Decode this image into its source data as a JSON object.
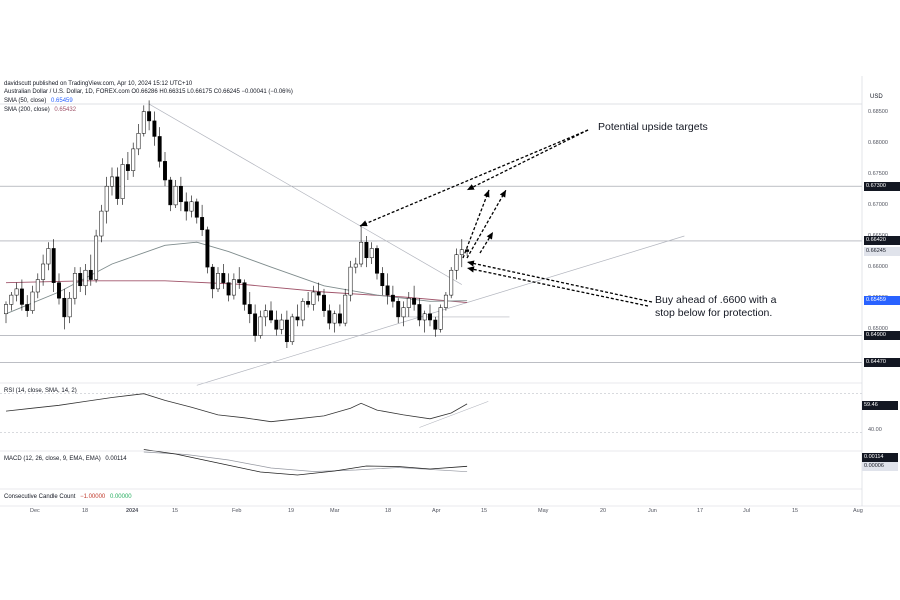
{
  "header": {
    "publisher": "davidscutt published on TradingView.com, Apr 10, 2024 15:12 UTC+10",
    "symbol_line": "Australian Dollar / U.S. Dollar, 1D, FOREX.com O0.66286 H0.66315 L0.66175 C0.66245 −0.00041 (−0.06%)",
    "sma50_label": "SMA (50, close)",
    "sma50_value": "0.65459",
    "sma200_label": "SMA (200, close)",
    "sma200_value": "0.65432",
    "currency": "USD"
  },
  "annotations": {
    "targets": "Potential upside targets",
    "buy_line1": "Buy ahead of .6600 with a",
    "buy_line2": "stop below for protection."
  },
  "price_axis": {
    "ticks": [
      "0.68500",
      "0.68000",
      "0.67500",
      "0.67000",
      "0.66500",
      "0.66000",
      "0.65500",
      "0.65000"
    ],
    "tags": [
      {
        "label": "0.67300",
        "style": "dark"
      },
      {
        "label": "0.66420",
        "style": "dark"
      },
      {
        "label": "0.66245",
        "style": "light"
      },
      {
        "label": "0.65459",
        "style": "blue"
      },
      {
        "label": "0.64900",
        "style": "dark"
      },
      {
        "label": "0.64470",
        "style": "dark"
      }
    ]
  },
  "rsi": {
    "label": "RSI (14, close, SMA, 14, 2)",
    "value": "59.46",
    "tick": "40.00"
  },
  "macd": {
    "label": "MACD (12, 26, close, 9, EMA, EMA)",
    "value": "0.00114",
    "signal_value": "0.00006"
  },
  "ccc": {
    "label": "Consecutive Candle Count",
    "v1": "−1.00000",
    "v2": "0.00000"
  },
  "time_axis": {
    "labels": [
      "Dec",
      "18",
      "2024",
      "15",
      "Feb",
      "19",
      "Mar",
      "18",
      "Apr",
      "15",
      "May",
      "20",
      "Jun",
      "17",
      "Jul",
      "15",
      "Aug"
    ]
  },
  "colors": {
    "up": "#ffffff",
    "down": "#000000",
    "sma50": "#7f8c8d",
    "sma200": "#a0546a",
    "blue_tag": "#2962ff"
  },
  "chart_data": {
    "type": "candlestick",
    "symbol": "AUD/USD",
    "interval": "1D",
    "ylim": [
      0.6425,
      0.6875
    ],
    "levels": [
      0.673,
      0.6642,
      0.649,
      0.6447
    ],
    "last_close": 0.66245,
    "ohlc": [
      [
        0.6525,
        0.6545,
        0.651,
        0.654
      ],
      [
        0.654,
        0.656,
        0.653,
        0.6555
      ],
      [
        0.6555,
        0.6575,
        0.6545,
        0.6565
      ],
      [
        0.6565,
        0.658,
        0.653,
        0.654
      ],
      [
        0.654,
        0.6555,
        0.652,
        0.653
      ],
      [
        0.653,
        0.657,
        0.6525,
        0.656
      ],
      [
        0.656,
        0.659,
        0.655,
        0.658
      ],
      [
        0.658,
        0.662,
        0.657,
        0.6605
      ],
      [
        0.6605,
        0.664,
        0.6595,
        0.663
      ],
      [
        0.663,
        0.6645,
        0.656,
        0.6575
      ],
      [
        0.6575,
        0.659,
        0.654,
        0.655
      ],
      [
        0.655,
        0.6565,
        0.65,
        0.652
      ],
      [
        0.652,
        0.656,
        0.651,
        0.655
      ],
      [
        0.655,
        0.66,
        0.654,
        0.659
      ],
      [
        0.659,
        0.66,
        0.656,
        0.657
      ],
      [
        0.657,
        0.6605,
        0.6555,
        0.6595
      ],
      [
        0.6595,
        0.662,
        0.657,
        0.658
      ],
      [
        0.658,
        0.666,
        0.6575,
        0.665
      ],
      [
        0.665,
        0.67,
        0.664,
        0.669
      ],
      [
        0.669,
        0.6745,
        0.667,
        0.673
      ],
      [
        0.673,
        0.676,
        0.6715,
        0.6745
      ],
      [
        0.6745,
        0.676,
        0.67,
        0.671
      ],
      [
        0.671,
        0.6775,
        0.67,
        0.6765
      ],
      [
        0.6765,
        0.6785,
        0.674,
        0.6755
      ],
      [
        0.6755,
        0.68,
        0.6745,
        0.679
      ],
      [
        0.679,
        0.683,
        0.678,
        0.6815
      ],
      [
        0.6815,
        0.686,
        0.681,
        0.685
      ],
      [
        0.685,
        0.6868,
        0.682,
        0.6835
      ],
      [
        0.6835,
        0.685,
        0.6795,
        0.681
      ],
      [
        0.681,
        0.6825,
        0.676,
        0.677
      ],
      [
        0.677,
        0.6785,
        0.673,
        0.674
      ],
      [
        0.674,
        0.6745,
        0.669,
        0.67
      ],
      [
        0.67,
        0.674,
        0.6695,
        0.673
      ],
      [
        0.673,
        0.6745,
        0.669,
        0.6705
      ],
      [
        0.6705,
        0.672,
        0.6675,
        0.669
      ],
      [
        0.669,
        0.6715,
        0.668,
        0.6705
      ],
      [
        0.6705,
        0.671,
        0.667,
        0.668
      ],
      [
        0.668,
        0.67,
        0.665,
        0.666
      ],
      [
        0.666,
        0.6665,
        0.659,
        0.66
      ],
      [
        0.66,
        0.6605,
        0.655,
        0.6565
      ],
      [
        0.6565,
        0.66,
        0.656,
        0.659
      ],
      [
        0.659,
        0.6605,
        0.6565,
        0.6575
      ],
      [
        0.6575,
        0.659,
        0.6545,
        0.6555
      ],
      [
        0.6555,
        0.659,
        0.6548,
        0.658
      ],
      [
        0.658,
        0.66,
        0.6565,
        0.6575
      ],
      [
        0.6575,
        0.658,
        0.653,
        0.654
      ],
      [
        0.654,
        0.656,
        0.651,
        0.6525
      ],
      [
        0.6525,
        0.654,
        0.648,
        0.649
      ],
      [
        0.649,
        0.653,
        0.6485,
        0.652
      ],
      [
        0.652,
        0.654,
        0.6505,
        0.653
      ],
      [
        0.653,
        0.6545,
        0.651,
        0.6515
      ],
      [
        0.6515,
        0.653,
        0.649,
        0.65
      ],
      [
        0.65,
        0.6525,
        0.6492,
        0.6515
      ],
      [
        0.6515,
        0.653,
        0.647,
        0.648
      ],
      [
        0.648,
        0.6525,
        0.6475,
        0.652
      ],
      [
        0.652,
        0.654,
        0.6505,
        0.6515
      ],
      [
        0.6515,
        0.655,
        0.6505,
        0.6545
      ],
      [
        0.6545,
        0.656,
        0.6535,
        0.654
      ],
      [
        0.654,
        0.657,
        0.653,
        0.656
      ],
      [
        0.656,
        0.6575,
        0.6545,
        0.6555
      ],
      [
        0.6555,
        0.6565,
        0.652,
        0.653
      ],
      [
        0.653,
        0.654,
        0.65,
        0.651
      ],
      [
        0.651,
        0.653,
        0.6495,
        0.6525
      ],
      [
        0.6525,
        0.654,
        0.6505,
        0.651
      ],
      [
        0.651,
        0.6565,
        0.6505,
        0.6555
      ],
      [
        0.6555,
        0.661,
        0.6545,
        0.66
      ],
      [
        0.66,
        0.6615,
        0.659,
        0.6605
      ],
      [
        0.6605,
        0.6668,
        0.66,
        0.664
      ],
      [
        0.664,
        0.665,
        0.66,
        0.6615
      ],
      [
        0.6615,
        0.664,
        0.6605,
        0.663
      ],
      [
        0.663,
        0.6635,
        0.658,
        0.659
      ],
      [
        0.659,
        0.66,
        0.6555,
        0.657
      ],
      [
        0.657,
        0.659,
        0.654,
        0.6555
      ],
      [
        0.6555,
        0.657,
        0.6535,
        0.6545
      ],
      [
        0.6545,
        0.655,
        0.651,
        0.652
      ],
      [
        0.652,
        0.6545,
        0.6505,
        0.6535
      ],
      [
        0.6535,
        0.656,
        0.652,
        0.655
      ],
      [
        0.655,
        0.657,
        0.653,
        0.654
      ],
      [
        0.654,
        0.655,
        0.6505,
        0.6515
      ],
      [
        0.6515,
        0.653,
        0.6495,
        0.6525
      ],
      [
        0.6525,
        0.654,
        0.6505,
        0.6515
      ],
      [
        0.6515,
        0.652,
        0.6488,
        0.65
      ],
      [
        0.65,
        0.654,
        0.6495,
        0.6535
      ],
      [
        0.6535,
        0.656,
        0.653,
        0.6555
      ],
      [
        0.6555,
        0.66,
        0.655,
        0.6595
      ],
      [
        0.6595,
        0.663,
        0.658,
        0.662
      ],
      [
        0.662,
        0.6645,
        0.66,
        0.6628
      ],
      [
        0.6628,
        0.6632,
        0.6618,
        0.6625
      ]
    ],
    "sma50": [
      [
        0,
        0.6525
      ],
      [
        10,
        0.656
      ],
      [
        20,
        0.6605
      ],
      [
        30,
        0.6635
      ],
      [
        36,
        0.664
      ],
      [
        42,
        0.6625
      ],
      [
        50,
        0.66
      ],
      [
        60,
        0.657
      ],
      [
        70,
        0.6555
      ],
      [
        80,
        0.6545
      ],
      [
        87,
        0.6546
      ]
    ],
    "sma200": [
      [
        0,
        0.6575
      ],
      [
        15,
        0.6578
      ],
      [
        30,
        0.6578
      ],
      [
        45,
        0.6572
      ],
      [
        60,
        0.656
      ],
      [
        75,
        0.6552
      ],
      [
        87,
        0.6543
      ]
    ],
    "rsi_series": [
      [
        0,
        52
      ],
      [
        5,
        55
      ],
      [
        10,
        58
      ],
      [
        15,
        62
      ],
      [
        20,
        66
      ],
      [
        26,
        70
      ],
      [
        30,
        63
      ],
      [
        35,
        56
      ],
      [
        40,
        48
      ],
      [
        45,
        45
      ],
      [
        50,
        41
      ],
      [
        55,
        44
      ],
      [
        60,
        47
      ],
      [
        65,
        55
      ],
      [
        67,
        60
      ],
      [
        70,
        53
      ],
      [
        75,
        48
      ],
      [
        80,
        44
      ],
      [
        84,
        50
      ],
      [
        87,
        59.46
      ]
    ],
    "macd_series": [
      [
        26,
        0.0045
      ],
      [
        32,
        0.0036
      ],
      [
        40,
        0.0018
      ],
      [
        48,
        0.0
      ],
      [
        55,
        -0.0006
      ],
      [
        62,
        0.0002
      ],
      [
        68,
        0.0012
      ],
      [
        74,
        0.0011
      ],
      [
        80,
        0.0006
      ],
      [
        87,
        0.00114
      ]
    ],
    "macd_signal": [
      [
        26,
        0.004
      ],
      [
        34,
        0.0035
      ],
      [
        42,
        0.0024
      ],
      [
        50,
        0.0008
      ],
      [
        58,
        0.0001
      ],
      [
        66,
        0.0004
      ],
      [
        74,
        0.0009
      ],
      [
        87,
        6e-05
      ]
    ]
  }
}
